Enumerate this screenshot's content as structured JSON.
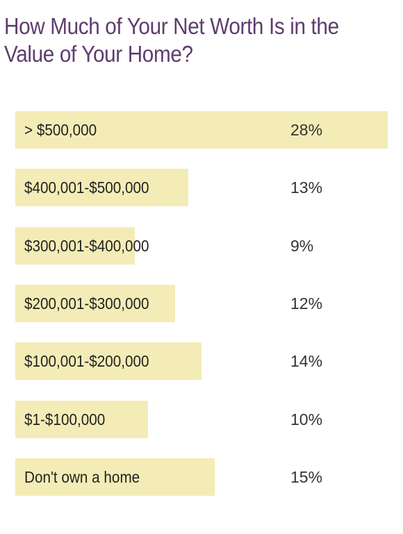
{
  "colors": {
    "title": "#5e3d6e",
    "bar": "#f4ecb6",
    "text": "#222222"
  },
  "chart_data": {
    "type": "bar",
    "orientation": "horizontal",
    "title": "How Much of Your Net Worth Is in the Value of Your Home?",
    "categories": [
      "> $500,000",
      "$400,001-$500,000",
      "$300,001-$400,000",
      "$200,001-$300,000",
      "$100,001-$200,000",
      "$1-$100,000",
      "Don't own a home"
    ],
    "values": [
      28,
      13,
      9,
      12,
      14,
      10,
      15
    ],
    "value_labels": [
      "28%",
      "13%",
      "9%",
      "12%",
      "14%",
      "10%",
      "15%"
    ],
    "unit": "%",
    "xlim": [
      0,
      28
    ],
    "grid": false,
    "legend": "none"
  }
}
